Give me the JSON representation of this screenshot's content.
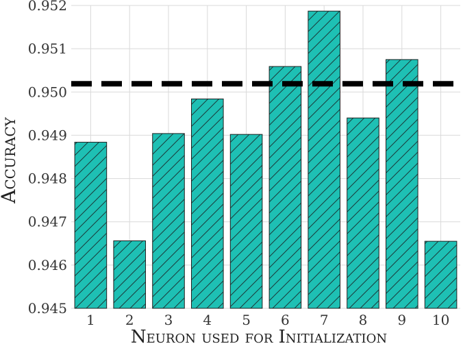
{
  "chart_data": {
    "type": "bar",
    "categories": [
      "1",
      "2",
      "3",
      "4",
      "5",
      "6",
      "7",
      "8",
      "9",
      "10"
    ],
    "values": [
      0.94884,
      0.94656,
      0.94904,
      0.94984,
      0.94902,
      0.95059,
      0.95187,
      0.9494,
      0.95075,
      0.94655
    ],
    "reference_line": 0.95019,
    "xlabel": "Neuron used for Initialization",
    "ylabel": "Accuracy",
    "ylim": [
      0.945,
      0.952
    ],
    "yticks": [
      "0.945",
      "0.946",
      "0.947",
      "0.948",
      "0.949",
      "0.950",
      "0.951",
      "0.952"
    ],
    "grid": true,
    "bar_color": "#1ec0b4",
    "bar_hatch": "diagonal",
    "reference_line_color": "#000000",
    "reference_line_style": "dashed"
  }
}
